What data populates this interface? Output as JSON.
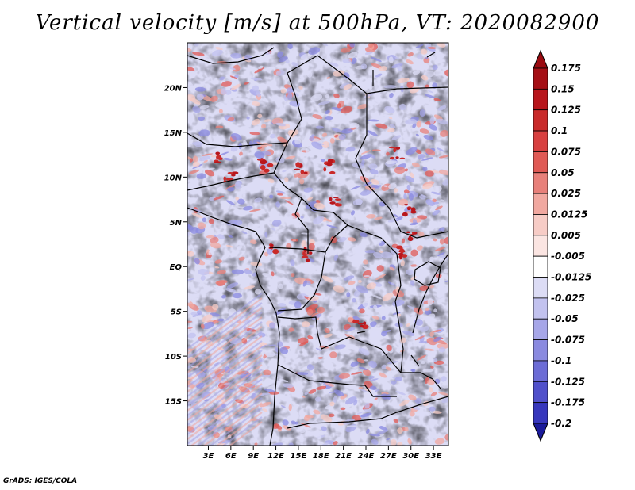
{
  "title": "Vertical velocity [m/s] at 500hPa, VT: 2020082900",
  "credit": "GrADS: IGES/COLA",
  "map": {
    "lat_ticks": [
      {
        "value": 20,
        "label": "20N"
      },
      {
        "value": 15,
        "label": "15N"
      },
      {
        "value": 10,
        "label": "10N"
      },
      {
        "value": 5,
        "label": "5N"
      },
      {
        "value": 0,
        "label": "EQ"
      },
      {
        "value": -5,
        "label": "5S"
      },
      {
        "value": -10,
        "label": "10S"
      },
      {
        "value": -15,
        "label": "15S"
      }
    ],
    "lon_ticks": [
      {
        "value": 3,
        "label": "3E"
      },
      {
        "value": 6,
        "label": "6E"
      },
      {
        "value": 9,
        "label": "9E"
      },
      {
        "value": 12,
        "label": "12E"
      },
      {
        "value": 15,
        "label": "15E"
      },
      {
        "value": 18,
        "label": "18E"
      },
      {
        "value": 21,
        "label": "21E"
      },
      {
        "value": 24,
        "label": "24E"
      },
      {
        "value": 27,
        "label": "27E"
      },
      {
        "value": 30,
        "label": "30E"
      },
      {
        "value": 33,
        "label": "33E"
      }
    ],
    "lon_range": [
      0.2,
      35
    ],
    "lat_range": [
      -20,
      25
    ]
  },
  "colorbar": {
    "levels": [
      {
        "label": "0.175",
        "color": "#a50f15"
      },
      {
        "label": "0.15",
        "color": "#b8161c"
      },
      {
        "label": "0.125",
        "color": "#c92a2a"
      },
      {
        "label": "0.1",
        "color": "#d84040"
      },
      {
        "label": "0.075",
        "color": "#e05a55"
      },
      {
        "label": "0.05",
        "color": "#e8807a"
      },
      {
        "label": "0.025",
        "color": "#f1a8a0"
      },
      {
        "label": "0.0125",
        "color": "#f7ccc6"
      },
      {
        "label": "0.005",
        "color": "#fbe5e2"
      },
      {
        "label": "-0.005",
        "color": "#ffffff"
      },
      {
        "label": "-0.0125",
        "color": "#dcdcf5"
      },
      {
        "label": "-0.025",
        "color": "#c2c2ef"
      },
      {
        "label": "-0.05",
        "color": "#a6a6e8"
      },
      {
        "label": "-0.075",
        "color": "#8a8ae0"
      },
      {
        "label": "-0.1",
        "color": "#6c6cd6"
      },
      {
        "label": "-0.125",
        "color": "#5050cb"
      },
      {
        "label": "-0.175",
        "color": "#3737bd"
      },
      {
        "label": "-0.2",
        "color": "#2222aa"
      }
    ],
    "top_color": "#9a0a10",
    "bottom_color": "#1a1a9a"
  },
  "colors": {
    "upward": "#c0392b",
    "downward": "#4b4bd0",
    "neutral": "#ffffff",
    "coast": "#000000"
  }
}
